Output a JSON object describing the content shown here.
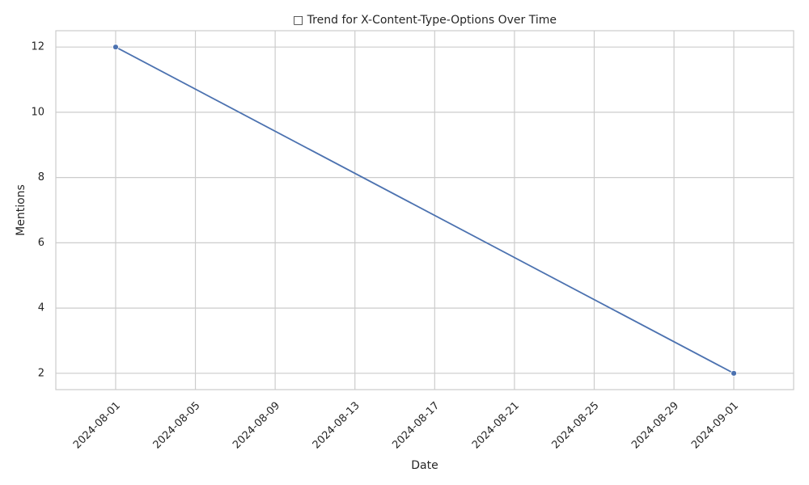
{
  "chart_data": {
    "type": "line",
    "title": "□ Trend for X-Content-Type-Options Over Time",
    "xlabel": "Date",
    "ylabel": "Mentions",
    "x_ticks": [
      "2024-08-01",
      "2024-08-05",
      "2024-08-09",
      "2024-08-13",
      "2024-08-17",
      "2024-08-21",
      "2024-08-25",
      "2024-08-29",
      "2024-09-01"
    ],
    "y_ticks": [
      "2",
      "4",
      "6",
      "8",
      "10",
      "12"
    ],
    "xlim": [
      "2024-07-29",
      "2024-09-04"
    ],
    "ylim": [
      1.5,
      12.5
    ],
    "grid": true,
    "series": [
      {
        "x": [
          "2024-08-01",
          "2024-09-01"
        ],
        "y": [
          12,
          2
        ],
        "color": "#4c72b0",
        "marker": "circle"
      }
    ]
  }
}
